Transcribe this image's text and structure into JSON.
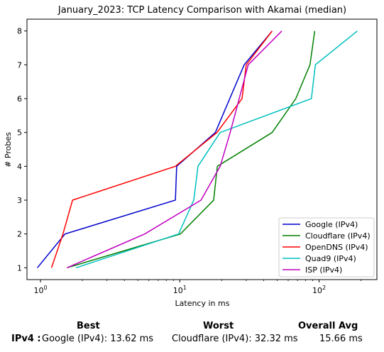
{
  "chart_data": {
    "type": "line",
    "title": "January_2023: TCP Latency Comparison with Akamai (median)",
    "xlabel": "Latency in ms",
    "ylabel": "# Probes",
    "xscale": "log",
    "xlim": [
      0.8,
      260
    ],
    "ylim": [
      0.65,
      8.35
    ],
    "yticks": [
      "1",
      "2",
      "3",
      "4",
      "5",
      "6",
      "7",
      "8"
    ],
    "xticks": [
      {
        "value": 1,
        "base": "10",
        "exp": "0"
      },
      {
        "value": 10,
        "base": "10",
        "exp": "1"
      },
      {
        "value": 100,
        "base": "10",
        "exp": "2"
      }
    ],
    "grid": false,
    "legend_position": "lower-right",
    "series": [
      {
        "name": "Google (IPv4)",
        "color": "#0000cc",
        "points": [
          [
            0.95,
            1
          ],
          [
            1.5,
            2
          ],
          [
            9.3,
            3
          ],
          [
            9.5,
            4
          ],
          [
            18,
            5
          ],
          [
            29,
            7
          ],
          [
            46,
            8
          ]
        ]
      },
      {
        "name": "Cloudflare (IPv4)",
        "color": "#008000",
        "points": [
          [
            1.55,
            1
          ],
          [
            10.1,
            2
          ],
          [
            17.5,
            3
          ],
          [
            18.6,
            4
          ],
          [
            46,
            5
          ],
          [
            68,
            6
          ],
          [
            86,
            7
          ],
          [
            93,
            8
          ]
        ]
      },
      {
        "name": "OpenDNS (IPv4)",
        "color": "#ff0000",
        "points": [
          [
            1.2,
            1
          ],
          [
            1.45,
            2
          ],
          [
            1.7,
            3
          ],
          [
            9.3,
            4
          ],
          [
            18.5,
            5
          ],
          [
            28,
            6
          ],
          [
            30,
            7
          ],
          [
            46,
            8
          ]
        ]
      },
      {
        "name": "Quad9 (IPv4)",
        "color": "#00bfbf",
        "points": [
          [
            1.8,
            1
          ],
          [
            9.8,
            2
          ],
          [
            12.6,
            3
          ],
          [
            13.5,
            4
          ],
          [
            19.5,
            5
          ],
          [
            88,
            6
          ],
          [
            94,
            7
          ],
          [
            188,
            8
          ]
        ]
      },
      {
        "name": "ISP (IPv4)",
        "color": "#bf00bf",
        "points": [
          [
            1.55,
            1
          ],
          [
            5.6,
            2
          ],
          [
            14.2,
            3
          ],
          [
            19.5,
            4
          ],
          [
            23,
            5
          ],
          [
            31,
            7
          ],
          [
            54,
            8
          ]
        ]
      }
    ]
  },
  "summary": {
    "headers": {
      "best": "Best",
      "worst": "Worst",
      "overall": "Overall Avg"
    },
    "row_label": "IPv4 :",
    "best": "Google (IPv4): 13.62 ms",
    "worst": "Cloudflare (IPv4): 32.32 ms",
    "overall": "15.66 ms"
  }
}
